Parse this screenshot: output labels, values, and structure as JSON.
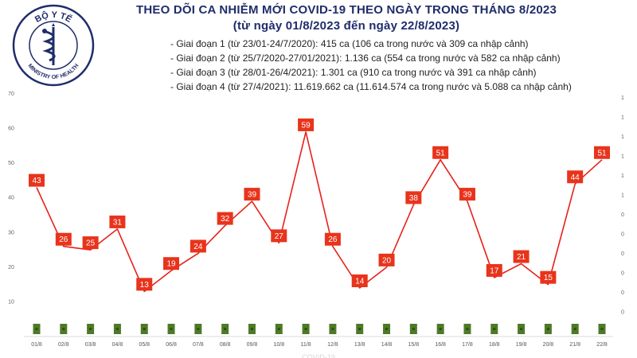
{
  "logo": {
    "top_text": "BỘ Y TẾ",
    "bottom_text": "MINISTRY OF HEALTH",
    "color": "#1f2d6b"
  },
  "header": {
    "title_line1": "THEO DÕI CA NHIỄM MỚI COVID-19 THEO NGÀY TRONG THÁNG 8/2023",
    "title_line2": "(từ ngày 01/8/2023 đến ngày 22/8/2023)"
  },
  "phases": [
    "- Giai đoạn 1 (từ 23/01-24/7/2020): 415 ca (106 ca trong nước và 309 ca nhập cảnh)",
    "- Giai đoạn 2 (từ 25/7/2020-27/01/2021): 1.136 ca (554 ca trong nước và 582 ca nhập cảnh)",
    "- Giai đoạn 3 (từ 28/01-26/4/2021): 1.301 ca (910 ca trong nước và 391 ca nhập cảnh)",
    "- Giai đoạn 4 (từ 27/4/2021): 11.619.662 ca (11.614.574 ca trong nước và 5.088 ca nhập cảnh)"
  ],
  "colors": {
    "line": "#e8211a",
    "label_bg": "#e8341c",
    "bar": "#4e7a26",
    "bar_dot": "#2e4d14"
  },
  "chart_data": {
    "type": "line",
    "categories": [
      "01/8",
      "02/8",
      "03/8",
      "04/8",
      "05/8",
      "06/8",
      "07/8",
      "08/8",
      "09/8",
      "10/8",
      "11/8",
      "12/8",
      "13/8",
      "14/8",
      "15/8",
      "16/8",
      "17/8",
      "18/8",
      "19/8",
      "20/8",
      "21/8",
      "22/8"
    ],
    "series": [
      {
        "values": [
          43,
          26,
          25,
          31,
          13,
          19,
          24,
          32,
          39,
          27,
          59,
          26,
          14,
          20,
          38,
          51,
          39,
          17,
          21,
          15,
          44,
          51
        ]
      }
    ],
    "ylim": [
      0,
      70
    ],
    "yticks": [
      10,
      20,
      30,
      40,
      50,
      60,
      70
    ],
    "right_axis_ticks": [
      "1",
      "1",
      "1",
      "1",
      "1",
      "1",
      "0",
      "0",
      "0",
      "0",
      "0",
      "0"
    ],
    "grid": false,
    "footer_obscured": "... COVID-19 ..."
  }
}
